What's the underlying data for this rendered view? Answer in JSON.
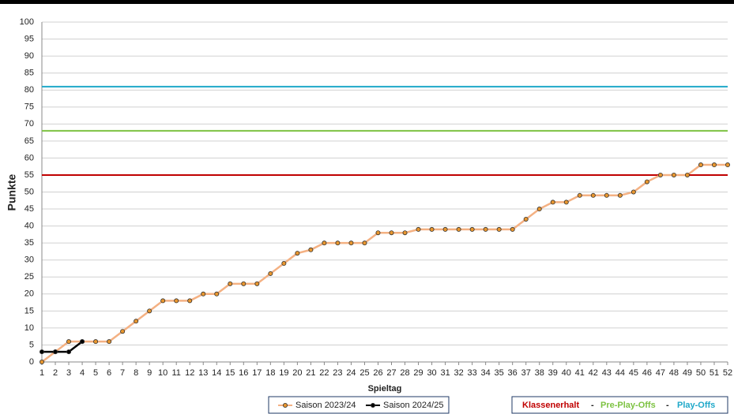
{
  "chart_data": {
    "type": "line",
    "x_label": "Spieltag",
    "y_label": "Punkte",
    "x": [
      1,
      2,
      3,
      4,
      5,
      6,
      7,
      8,
      9,
      10,
      11,
      12,
      13,
      14,
      15,
      16,
      17,
      18,
      19,
      20,
      21,
      22,
      23,
      24,
      25,
      26,
      27,
      28,
      29,
      30,
      31,
      32,
      33,
      34,
      35,
      36,
      37,
      38,
      39,
      40,
      41,
      42,
      43,
      44,
      45,
      46,
      47,
      48,
      49,
      50,
      51,
      52
    ],
    "xlim": [
      1,
      52
    ],
    "ylim": [
      0,
      100
    ],
    "yticks": [
      0,
      5,
      10,
      15,
      20,
      25,
      30,
      35,
      40,
      45,
      50,
      55,
      60,
      65,
      70,
      75,
      80,
      85,
      90,
      95,
      100
    ],
    "grid": true,
    "series": [
      {
        "name": "Saison 2023/24",
        "color": "#f4b183",
        "marker_color": "#e8962e",
        "values": [
          0,
          3,
          6,
          6,
          6,
          6,
          9,
          12,
          15,
          18,
          18,
          18,
          20,
          20,
          23,
          23,
          23,
          26,
          29,
          32,
          33,
          35,
          35,
          35,
          35,
          38,
          38,
          38,
          39,
          39,
          39,
          39,
          39,
          39,
          39,
          39,
          42,
          45,
          47,
          47,
          49,
          49,
          49,
          49,
          50,
          53,
          55,
          55,
          55,
          58,
          58,
          58
        ]
      },
      {
        "name": "Saison 2024/25",
        "color": "#000000",
        "marker_color": "#000000",
        "values": [
          3,
          3,
          3,
          6,
          null,
          null,
          null,
          null,
          null,
          null,
          null,
          null,
          null,
          null,
          null,
          null,
          null,
          null,
          null,
          null,
          null,
          null,
          null,
          null,
          null,
          null,
          null,
          null,
          null,
          null,
          null,
          null,
          null,
          null,
          null,
          null,
          null,
          null,
          null,
          null,
          null,
          null,
          null,
          null,
          null,
          null,
          null,
          null,
          null,
          null,
          null,
          null
        ]
      }
    ],
    "reference_lines": [
      {
        "name": "Klassenerhalt",
        "value": 55,
        "color": "#c00000"
      },
      {
        "name": "Pre-Play-Offs",
        "value": 68,
        "color": "#7dc242"
      },
      {
        "name": "Play-Offs",
        "value": 81,
        "color": "#1fa8c9"
      }
    ],
    "reference_separator": "-"
  }
}
